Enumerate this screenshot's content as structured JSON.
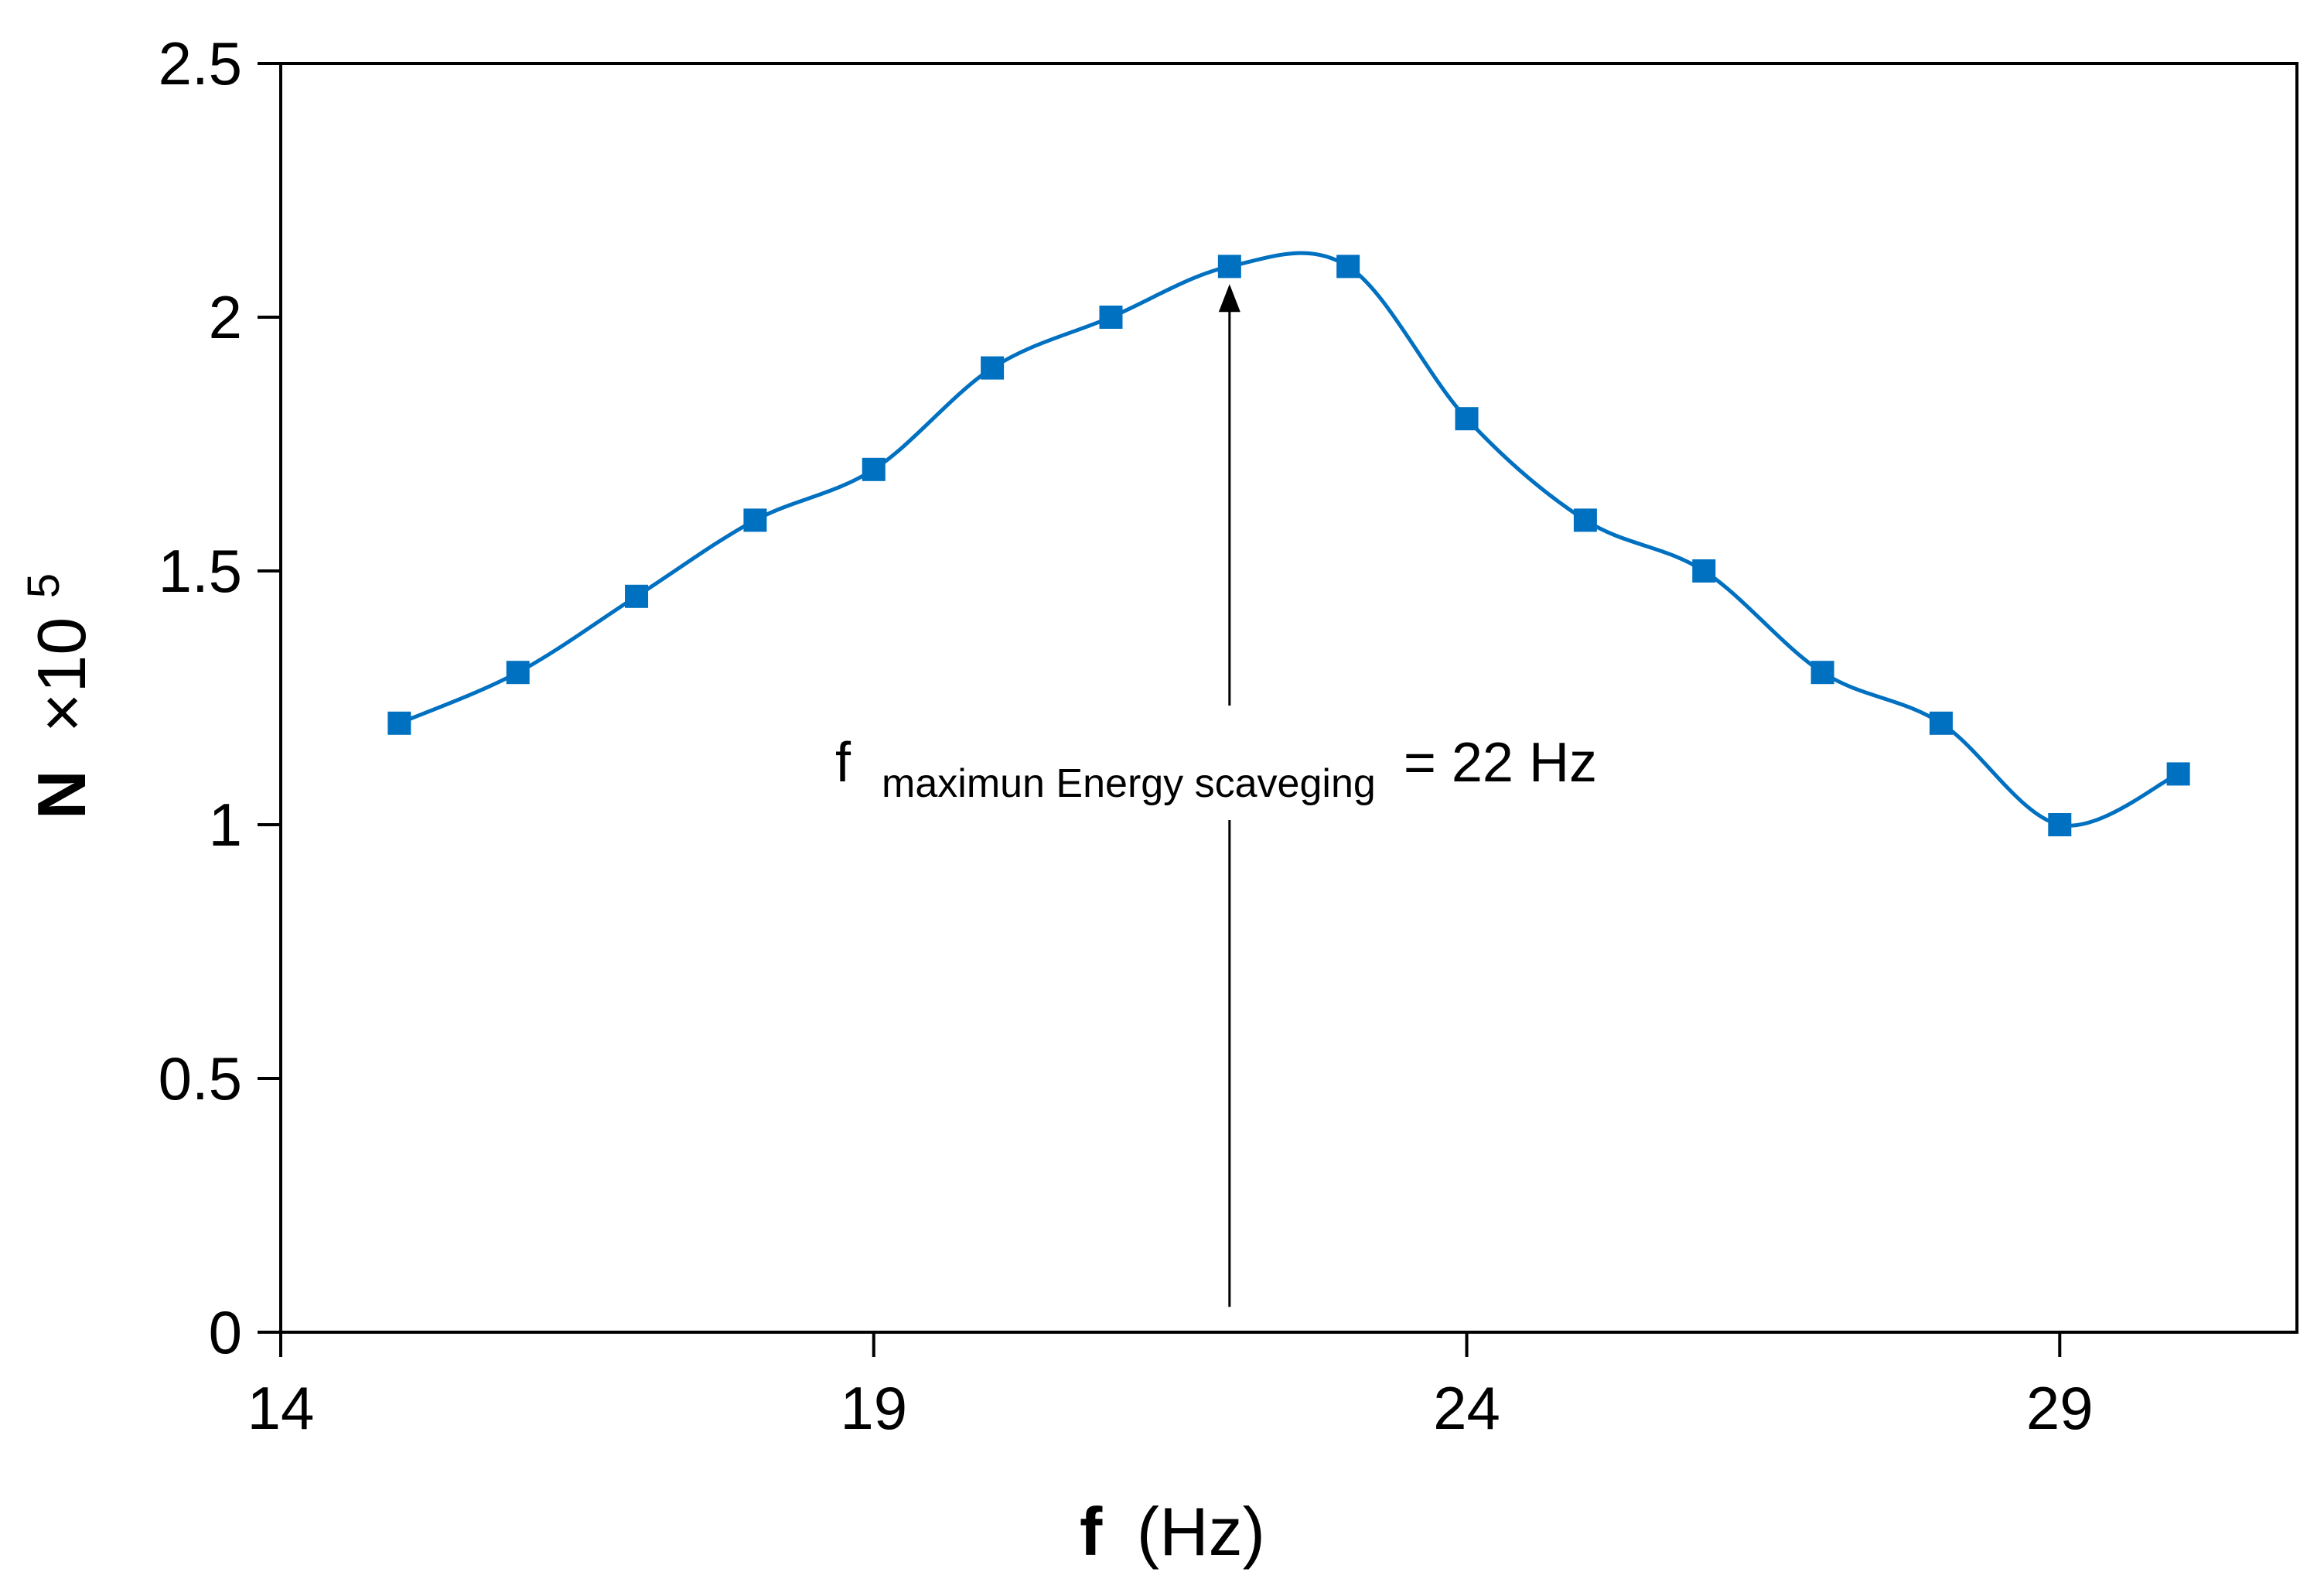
{
  "chart_data": {
    "type": "line",
    "title": "",
    "xlabel_main": "f",
    "xlabel_unit": "(Hz)",
    "ylabel_main": "N",
    "ylabel_multiplier": "×10",
    "ylabel_exponent": "5",
    "xlim": [
      14,
      31
    ],
    "ylim": [
      0,
      2.5
    ],
    "x_ticks": [
      "14",
      "19",
      "24",
      "29"
    ],
    "y_ticks": [
      "0",
      "0.5",
      "1",
      "1.5",
      "2",
      "2.5"
    ],
    "grid": false,
    "legend": "none",
    "colors": {
      "series": "#0070C0",
      "axis": "#000000"
    },
    "series": [
      {
        "name": "N",
        "marker": "square",
        "smooth": true,
        "x": [
          15,
          16,
          17,
          18,
          19,
          20,
          21,
          22,
          23,
          24,
          25,
          26,
          27,
          28,
          29,
          30
        ],
        "y": [
          1.2,
          1.3,
          1.45,
          1.6,
          1.7,
          1.9,
          2.0,
          2.1,
          2.1,
          1.8,
          1.6,
          1.5,
          1.3,
          1.2,
          1.0,
          1.1
        ]
      }
    ],
    "annotation": {
      "prefix": "f",
      "subscript": "maximun Energy scaveging",
      "suffix": "= 22 Hz",
      "arrow_x": 22,
      "arrow_from_y": 0.05,
      "arrow_to_y": 2.05
    }
  }
}
